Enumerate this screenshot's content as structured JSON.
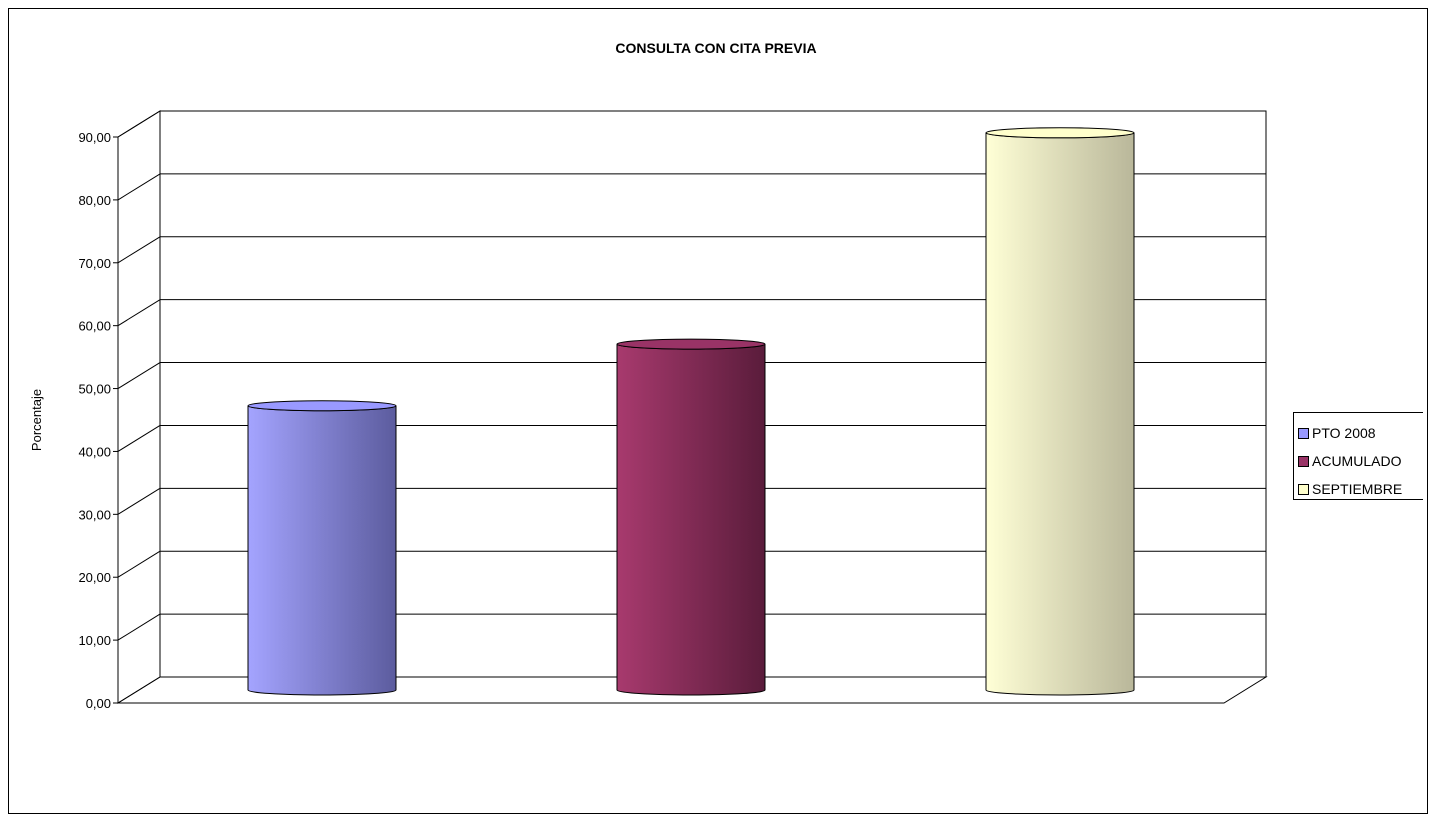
{
  "chart_data": {
    "type": "bar",
    "title": "CONSULTA CON CITA PREVIA",
    "xlabel": "",
    "ylabel": "Porcentaje",
    "ylim": [
      0,
      90
    ],
    "ytick_labels": [
      "0,00",
      "10,00",
      "20,00",
      "30,00",
      "40,00",
      "50,00",
      "60,00",
      "70,00",
      "80,00",
      "90,00"
    ],
    "grid": true,
    "legend_position": "right",
    "series": [
      {
        "name": "PTO 2008",
        "values": [
          45.2
        ],
        "color": "#9999ff"
      },
      {
        "name": "ACUMULADO",
        "values": [
          55.0
        ],
        "color": "#993366"
      },
      {
        "name": "SEPTIEMBRE",
        "values": [
          88.6
        ],
        "color": "#ffffcc"
      }
    ]
  }
}
